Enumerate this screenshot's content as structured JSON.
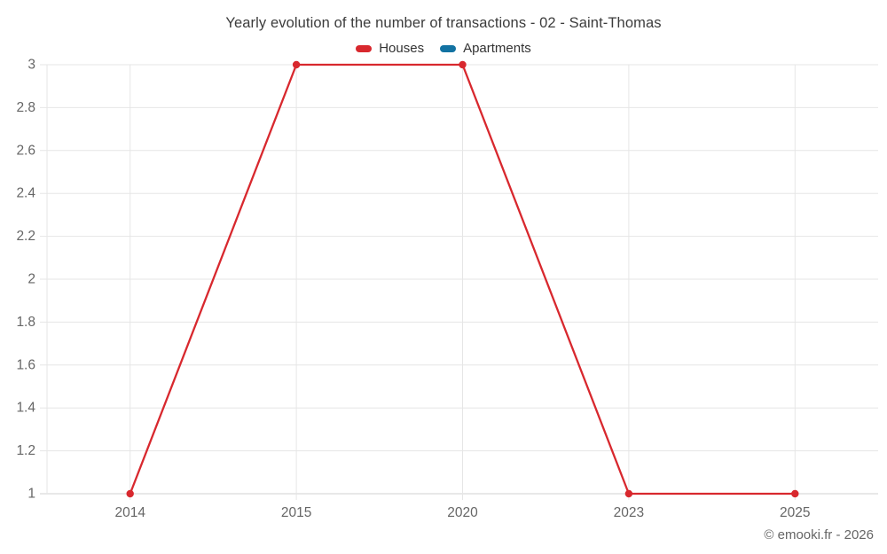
{
  "title": "Yearly evolution of the number of transactions - 02 - Saint-Thomas",
  "legend": {
    "items": [
      {
        "label": "Houses",
        "color": "#d8282e"
      },
      {
        "label": "Apartments",
        "color": "#1272a2"
      }
    ]
  },
  "credits": "© emooki.fr - 2026",
  "colors": {
    "grid": "#e6e6e6",
    "axis_line": "#d0d0d0",
    "tick_label": "#666666"
  },
  "chart_data": {
    "type": "line",
    "title": "Yearly evolution of the number of transactions - 02 - Saint-Thomas",
    "categories": [
      "2014",
      "2015",
      "2020",
      "2023",
      "2025"
    ],
    "series": [
      {
        "name": "Houses",
        "color": "#d8282e",
        "values": [
          1,
          3,
          3,
          1,
          1
        ]
      },
      {
        "name": "Apartments",
        "color": "#1272a2",
        "values": []
      }
    ],
    "xlabel": "",
    "ylabel": "",
    "ylim": [
      1,
      3
    ],
    "ytick_step": 0.2,
    "grid": true,
    "legend_position": "top"
  }
}
